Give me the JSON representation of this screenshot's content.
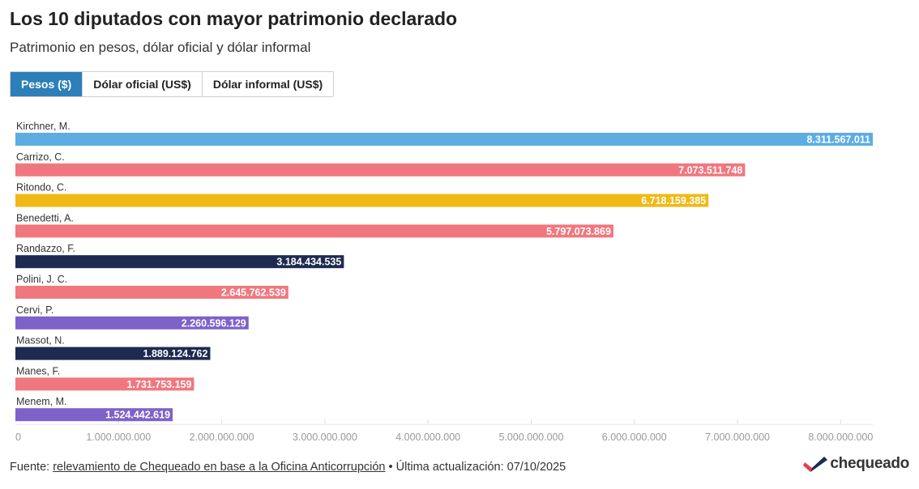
{
  "header": {
    "title": "Los 10 diputados con mayor patrimonio declarado",
    "subtitle": "Patrimonio en pesos, dólar oficial y dólar informal"
  },
  "tabs": [
    {
      "label": "Pesos ($)",
      "active": true
    },
    {
      "label": "Dólar oficial (US$)",
      "active": false
    },
    {
      "label": "Dólar informal (US$)",
      "active": false
    }
  ],
  "chart_data": {
    "type": "bar",
    "orientation": "horizontal",
    "categories": [
      "Kirchner, M.",
      "Carrizo, C.",
      "Ritondo, C.",
      "Benedetti, A.",
      "Randazzo, F.",
      "Polini, J. C.",
      "Cervi, P.",
      "Massot, N.",
      "Manes, F.",
      "Menem, M."
    ],
    "values": [
      8311567011,
      7073511748,
      6718159385,
      5797073869,
      3184434535,
      2645762539,
      2260596129,
      1889124762,
      1731753159,
      1524442619
    ],
    "value_labels": [
      "8.311.567.011",
      "7.073.511.748",
      "6.718.159.385",
      "5.797.073.869",
      "3.184.434.535",
      "2.645.762.539",
      "2.260.596.129",
      "1.889.124.762",
      "1.731.753.159",
      "1.524.442.619"
    ],
    "colors": [
      "#5dade2",
      "#f1777e",
      "#f0b915",
      "#f1777e",
      "#1f2a50",
      "#f1777e",
      "#7e62c9",
      "#1f2a50",
      "#f1777e",
      "#7e62c9"
    ],
    "xlim": [
      0,
      8311567011
    ],
    "xticks": [
      0,
      1000000000,
      2000000000,
      3000000000,
      4000000000,
      5000000000,
      6000000000,
      7000000000,
      8000000000
    ],
    "xtick_labels": [
      "0",
      "1.000.000.000",
      "2.000.000.000",
      "3.000.000.000",
      "4.000.000.000",
      "5.000.000.000",
      "6.000.000.000",
      "7.000.000.000",
      "8.000.000.000"
    ],
    "grid": true
  },
  "footer": {
    "prefix": "Fuente: ",
    "link": "relevamiento de Chequeado en base a la Oficina Anticorrupción",
    "suffix": " • Última actualización: 07/10/2025"
  },
  "brand": {
    "name": "chequeado",
    "colors": {
      "accent": "#2c7fb8",
      "logo_red": "#e2424e",
      "logo_dark": "#1f2a50"
    }
  }
}
